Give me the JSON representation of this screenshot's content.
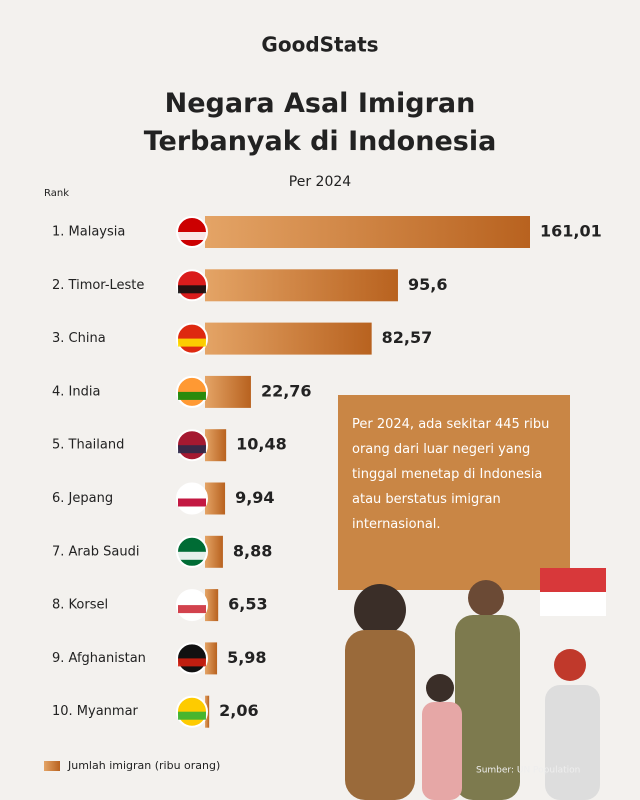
{
  "brand": "GoodStats",
  "chart_data": {
    "type": "bar",
    "orientation": "horizontal",
    "title": "Negara Asal Imigran Terbanyak di Indonesia",
    "subtitle": "Per 2024",
    "rank_label": "Rank",
    "categories": [
      "1. Malaysia",
      "2. Timor-Leste",
      "3. China",
      "4. India",
      "5. Thailand",
      "6. Jepang",
      "7. Arab Saudi",
      "8. Korsel",
      "9. Afghanistan",
      "10. Myanmar"
    ],
    "values": [
      161.01,
      95.6,
      82.57,
      22.76,
      10.48,
      9.94,
      8.88,
      6.53,
      5.98,
      2.06
    ],
    "value_labels": [
      "161,01",
      "95,6",
      "82,57",
      "22,76",
      "10,48",
      "9,94",
      "8,88",
      "6,53",
      "5,98",
      "2,06"
    ],
    "color": "#c8742f",
    "legend": "Jumlah imigran (ribu orang)",
    "annotation": "Per 2024, ada sekitar 445 ribu orang dari luar negeri yang tinggal menetap di Indonesia atau berstatus imigran internasional.",
    "source": "Sumber: UN Population"
  }
}
